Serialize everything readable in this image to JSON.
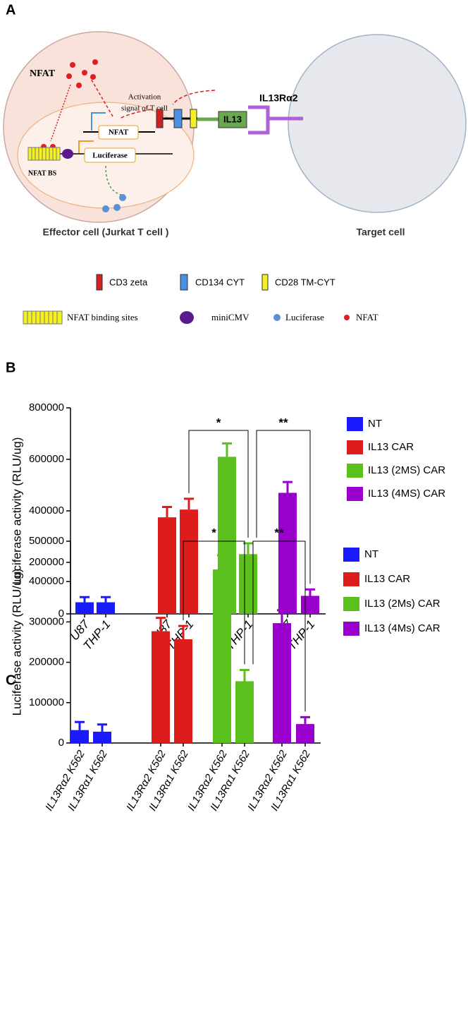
{
  "panels": {
    "a": "A",
    "b": "B",
    "c": "C"
  },
  "diagram": {
    "nfat": "NFAT",
    "activation_1": "Activation",
    "activation_2": "signal of T cell",
    "receptor": "IL13Rα2",
    "ligand": "IL13",
    "nfat_box": "NFAT",
    "luciferase_box": "Luciferase",
    "nfat_bs": "NFAT BS",
    "effector": "Effector cell (Jurkat T cell )",
    "target": "Target cell"
  },
  "legend": {
    "cd3": "CD3 zeta",
    "cd134": "CD134 CYT",
    "cd28": "CD28 TM-CYT",
    "binding": "NFAT binding sites",
    "minicmv": "miniCMV",
    "luciferase": "Luciferase",
    "nfat": "NFAT"
  },
  "chart_data": [
    {
      "type": "bar",
      "y_label": "Luciferase activity (RLU/ug)",
      "categories": [
        "U87",
        "THP-1",
        "U87",
        "THP-1",
        "U87",
        "THP-1",
        "U87",
        "THP-1"
      ],
      "series": [
        {
          "name": "NT",
          "color": "#1a1aff",
          "values": [
            45000,
            45000,
            null,
            null,
            null,
            null,
            null,
            null
          ],
          "errors": [
            20000,
            20000,
            null,
            null,
            null,
            null,
            null,
            null
          ]
        },
        {
          "name": "IL13 CAR",
          "color": "#dd1c1c",
          "values": [
            null,
            null,
            375000,
            405000,
            null,
            null,
            null,
            null
          ],
          "errors": [
            null,
            null,
            40000,
            42000,
            null,
            null,
            null,
            null
          ]
        },
        {
          "name": "IL13 (2MS) CAR",
          "color": "#5bbf1e",
          "values": [
            null,
            null,
            null,
            null,
            610000,
            232000,
            null,
            null
          ],
          "errors": [
            null,
            null,
            null,
            null,
            52000,
            42000,
            null,
            null
          ]
        },
        {
          "name": "IL13 (4MS) CAR",
          "color": "#9900cc",
          "values": [
            null,
            null,
            null,
            null,
            null,
            null,
            470000,
            70000
          ],
          "errors": [
            null,
            null,
            null,
            null,
            null,
            null,
            42000,
            25000
          ]
        }
      ],
      "annotations": [
        "*",
        "**"
      ],
      "ylim": [
        0,
        800000
      ],
      "yticks": [
        0,
        200000,
        400000,
        600000,
        800000
      ]
    },
    {
      "type": "bar",
      "y_label": "Luciferase activity (RLU/ug)",
      "categories": [
        "IL13Rα2 K562",
        "IL13Rα1 K562",
        "IL13Rα2 K562",
        "IL13Rα1 K562",
        "IL13Rα2 K562",
        "IL13Rα1 K562",
        "IL13Rα2 K562",
        "IL13Rα1 K562"
      ],
      "series": [
        {
          "name": "NT",
          "color": "#1a1aff",
          "values": [
            32000,
            28000,
            null,
            null,
            null,
            null,
            null,
            null
          ],
          "errors": [
            20000,
            18000,
            null,
            null,
            null,
            null,
            null,
            null
          ]
        },
        {
          "name": "IL13 CAR",
          "color": "#dd1c1c",
          "values": [
            null,
            null,
            277000,
            257000,
            null,
            null,
            null,
            null
          ],
          "errors": [
            null,
            null,
            33000,
            33000,
            null,
            null,
            null,
            null
          ]
        },
        {
          "name": "IL13 (2Ms) CAR",
          "color": "#5bbf1e",
          "values": [
            null,
            null,
            null,
            null,
            430000,
            153000,
            null,
            null
          ],
          "errors": [
            null,
            null,
            null,
            null,
            35000,
            28000,
            null,
            null
          ]
        },
        {
          "name": "IL13 (4Ms) CAR",
          "color": "#9900cc",
          "values": [
            null,
            null,
            null,
            null,
            null,
            null,
            297000,
            47000
          ],
          "errors": [
            null,
            null,
            null,
            null,
            null,
            null,
            32000,
            17000
          ]
        }
      ],
      "annotations": [
        "*",
        "**"
      ],
      "ylim": [
        0,
        500000
      ],
      "yticks": [
        0,
        100000,
        200000,
        300000,
        400000,
        500000
      ]
    }
  ]
}
